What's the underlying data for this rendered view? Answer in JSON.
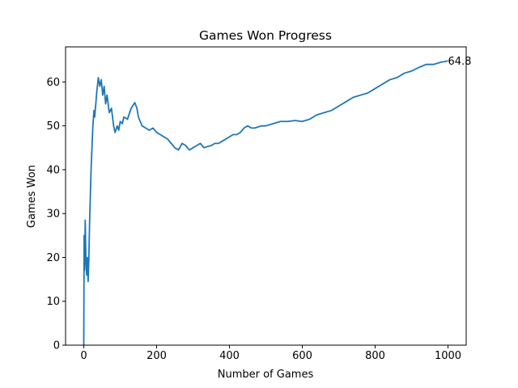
{
  "chart_data": {
    "type": "line",
    "title": "Games Won Progress",
    "x_label": "Number of Games",
    "y_label": "Games Won",
    "x": [
      0,
      1,
      2,
      4,
      6,
      8,
      10,
      12,
      14,
      16,
      20,
      25,
      28,
      30,
      32,
      36,
      40,
      44,
      48,
      52,
      56,
      60,
      64,
      70,
      76,
      82,
      86,
      92,
      96,
      100,
      106,
      110,
      120,
      130,
      140,
      146,
      150,
      160,
      170,
      180,
      190,
      200,
      210,
      220,
      230,
      240,
      250,
      260,
      270,
      280,
      290,
      300,
      310,
      320,
      330,
      340,
      350,
      360,
      370,
      380,
      390,
      400,
      410,
      420,
      430,
      440,
      450,
      460,
      470,
      480,
      490,
      500,
      520,
      540,
      560,
      580,
      600,
      620,
      640,
      660,
      680,
      700,
      720,
      740,
      760,
      780,
      800,
      820,
      840,
      860,
      880,
      900,
      920,
      940,
      960,
      980,
      1000
    ],
    "series": [
      {
        "name": "Games Won",
        "color": "#1f77b4",
        "values": [
          0,
          25,
          17,
          28.5,
          19,
          16,
          20,
          14.5,
          20,
          28,
          40,
          50,
          53.5,
          52,
          54,
          58,
          61,
          59,
          60.5,
          57,
          59,
          55,
          57,
          53,
          54,
          50,
          48.5,
          50,
          49,
          51,
          50.5,
          52,
          51.5,
          54,
          55.3,
          54,
          52,
          50,
          49.5,
          49,
          49.5,
          48.5,
          48,
          47.5,
          47,
          46,
          45,
          44.5,
          46,
          45.5,
          44.5,
          45,
          45.5,
          46,
          45,
          45.3,
          45.5,
          46,
          46,
          46.5,
          47,
          47.5,
          48,
          48,
          48.5,
          49.5,
          50,
          49.5,
          49.5,
          49.8,
          50,
          50,
          50.5,
          51,
          51,
          51.2,
          51,
          51.5,
          52.5,
          53,
          53.5,
          54.5,
          55.5,
          56.5,
          57,
          57.5,
          58.5,
          59.5,
          60.5,
          61,
          62,
          62.5,
          63.3,
          64,
          64,
          64.5,
          64.8
        ]
      }
    ],
    "annotation": {
      "x": 1000,
      "y": 64.8,
      "text": "64.8"
    },
    "xlim": [
      -50,
      1050
    ],
    "ylim": [
      0,
      68
    ],
    "xticks": [
      0,
      200,
      400,
      600,
      800,
      1000
    ],
    "yticks": [
      0,
      10,
      20,
      30,
      40,
      50,
      60
    ]
  }
}
